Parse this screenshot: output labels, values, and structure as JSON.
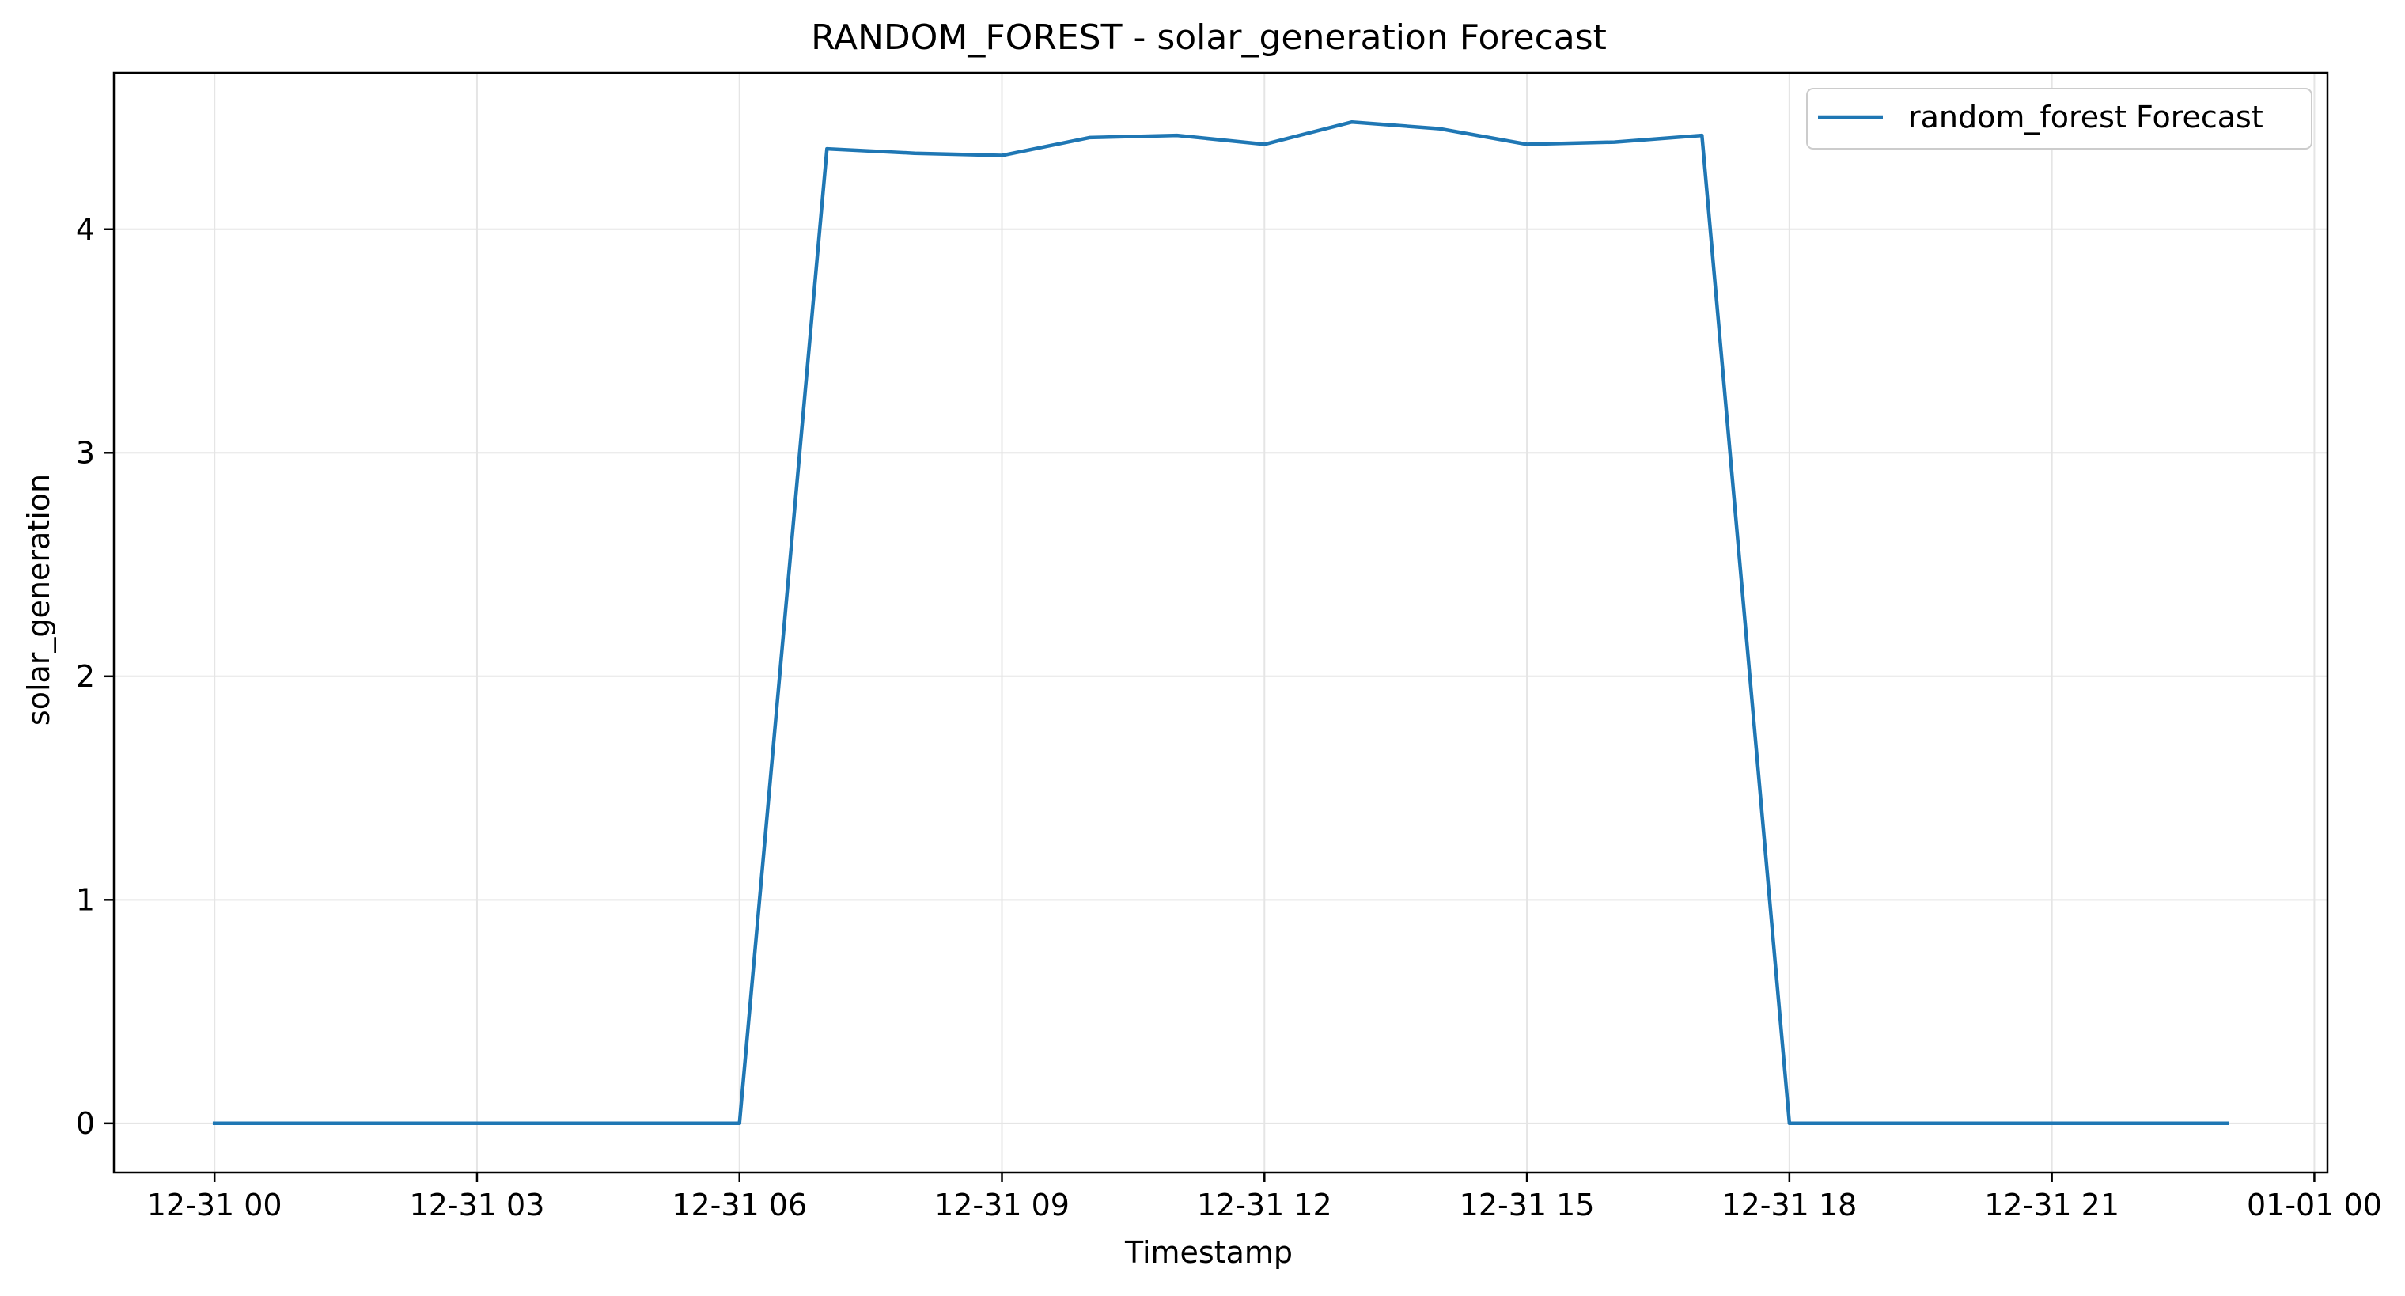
{
  "chart_data": {
    "type": "line",
    "title": "RANDOM_FOREST - solar_generation Forecast",
    "xlabel": "Timestamp",
    "ylabel": "solar_generation",
    "x_tick_labels": [
      "12-31 00",
      "12-31 03",
      "12-31 06",
      "12-31 09",
      "12-31 12",
      "12-31 15",
      "12-31 18",
      "12-31 21",
      "01-01 00"
    ],
    "x_ticks_hours": [
      0,
      3,
      6,
      9,
      12,
      15,
      18,
      21,
      24
    ],
    "y_ticks": [
      0,
      1,
      2,
      3,
      4
    ],
    "xlim_hours": [
      -1.15,
      24.15
    ],
    "ylim": [
      -0.22,
      4.7
    ],
    "grid": true,
    "legend": {
      "placement": "top-right",
      "entries": [
        "random_forest Forecast"
      ]
    },
    "series": [
      {
        "name": "random_forest Forecast",
        "color": "#1f77b4",
        "x_hours": [
          0,
          1,
          2,
          3,
          4,
          5,
          6,
          7,
          8,
          9,
          10,
          11,
          12,
          13,
          14,
          15,
          16,
          17,
          18,
          19,
          20,
          21,
          22,
          23
        ],
        "values": [
          0,
          0,
          0,
          0,
          0,
          0,
          0,
          4.36,
          4.34,
          4.33,
          4.41,
          4.42,
          4.38,
          4.48,
          4.45,
          4.38,
          4.39,
          4.42,
          0,
          0,
          0,
          0,
          0,
          0
        ]
      }
    ]
  }
}
